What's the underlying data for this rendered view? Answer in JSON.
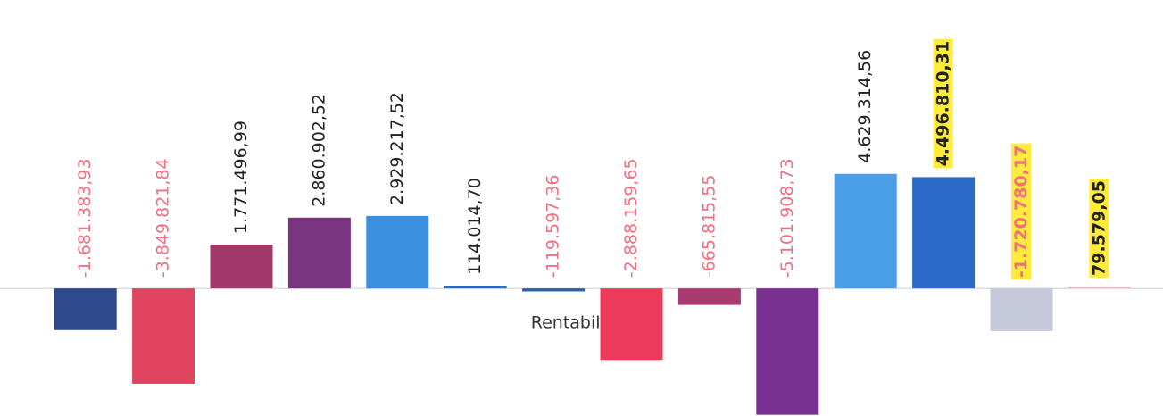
{
  "chart_data": {
    "type": "bar",
    "x_label": "Rentabilidade",
    "categories": [
      null,
      null,
      null,
      null,
      null,
      null,
      null,
      null,
      null,
      null,
      null,
      null,
      null,
      null
    ],
    "values": [
      -1681383.93,
      -3849821.84,
      1771496.99,
      2860902.52,
      2929217.52,
      114014.7,
      -119597.36,
      -2888159.65,
      -665815.55,
      -5101908.73,
      4629314.56,
      4496810.31,
      -1720780.17,
      79579.05
    ],
    "value_labels": [
      "-1.681.383,93",
      "-3.849.821,84",
      "1.771.496,99",
      "2.860.902,52",
      "2.929.217,52",
      "114.014,70",
      "-119.597,36",
      "-2.888.159,65",
      "-665.815,55",
      "-5.101.908,73",
      "4.629.314,56",
      "4.496.810,31",
      "-1.720.780,17",
      "79.579,05"
    ],
    "colors": [
      "#2e4a8c",
      "#e0435e",
      "#a0386a",
      "#7b3580",
      "#3d8fe0",
      "#2e6cc0",
      "#2e5fb0",
      "#ee3a5a",
      "#a83a70",
      "#7a3090",
      "#4a9fe8",
      "#2a6ac8",
      "#c4c8d8",
      "#f0b0d0"
    ],
    "label_highlight": [
      false,
      false,
      false,
      false,
      false,
      false,
      false,
      false,
      false,
      false,
      false,
      true,
      true,
      true
    ],
    "highlight_color": "#ffeb3b",
    "positive_label_color": "#222222",
    "negative_label_color": "#f07080",
    "ylim": [
      -5150000,
      11650000
    ]
  }
}
